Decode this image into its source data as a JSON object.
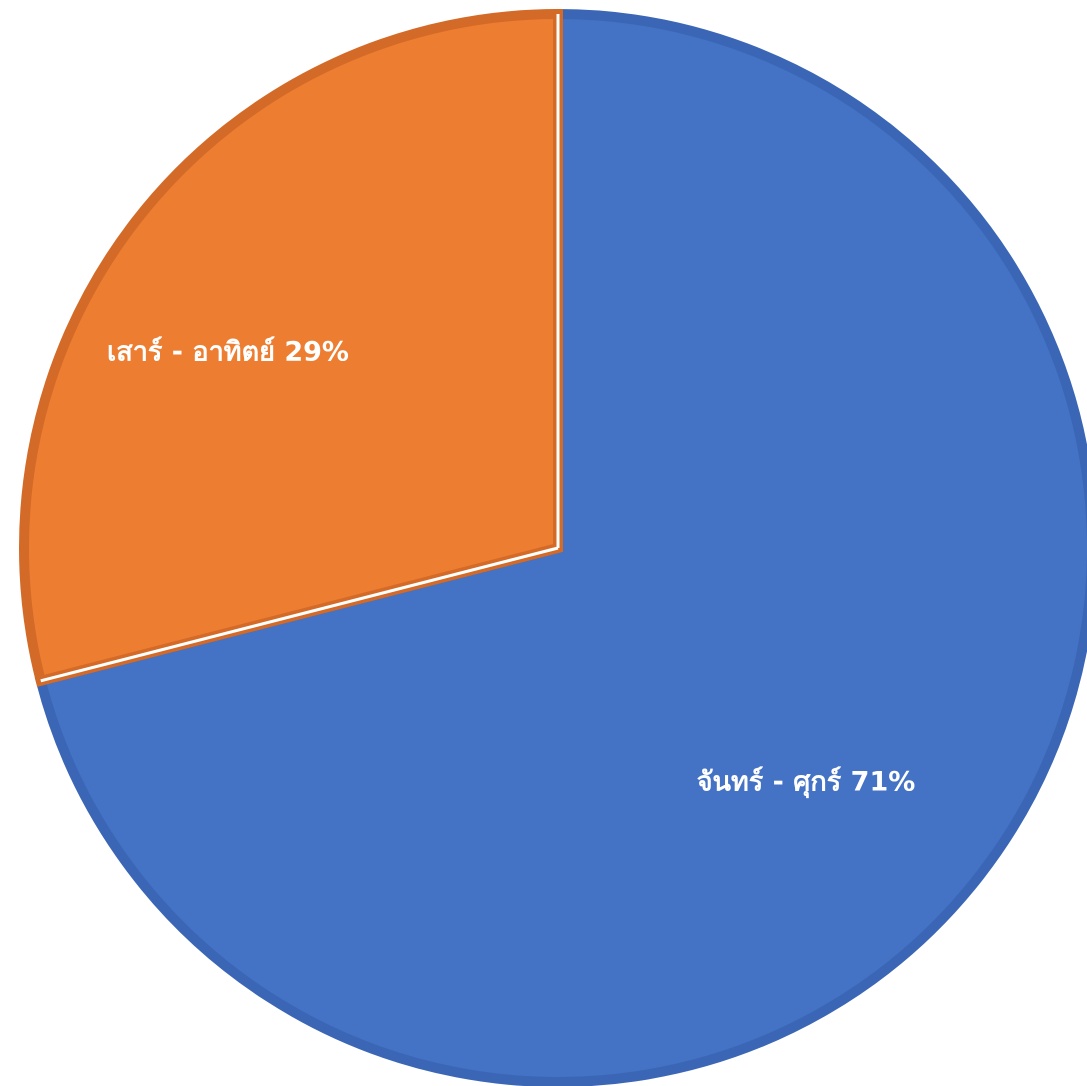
{
  "chart_data": {
    "type": "pie",
    "title": "",
    "categories": [
      "จันทร์ - ศุกร์",
      "เสาร์ - อาทิตย์"
    ],
    "values": [
      71,
      29
    ],
    "data_labels": [
      "จันทร์ - ศุกร์ 71%",
      "เสาร์ - อาทิตย์ 29%"
    ],
    "colors": [
      "#4472C4",
      "#ED7D31"
    ],
    "border_colors": [
      "#3A66B5",
      "#D46A27"
    ],
    "legend": "none"
  }
}
